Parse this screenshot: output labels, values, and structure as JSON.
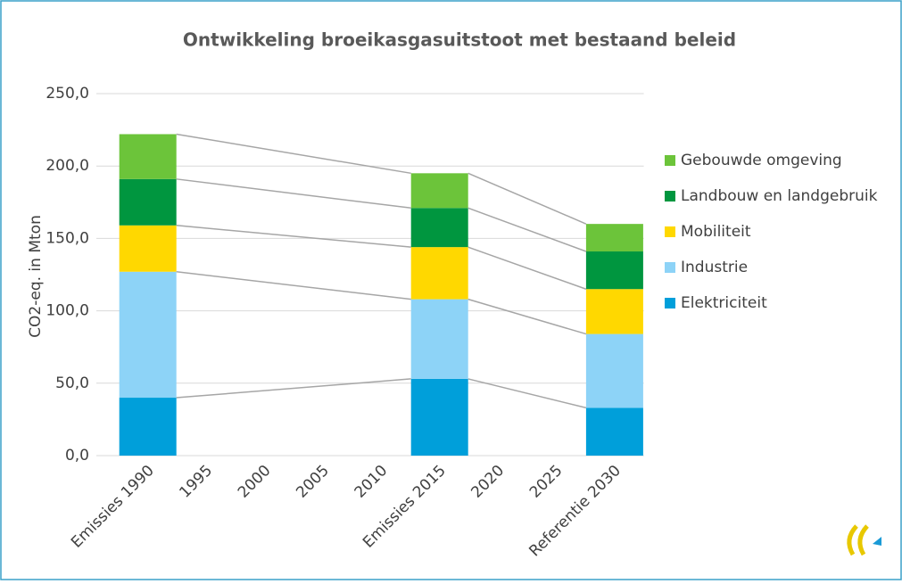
{
  "chart_data": {
    "type": "stacked_bar",
    "title": "Ontwikkeling broeikasgasuitstoot met bestaand beleid",
    "y_label": "CO2-eq. in Mton",
    "categories": [
      "Emissies 1990",
      "1995",
      "2000",
      "2005",
      "2010",
      "Emissies 2015",
      "2020",
      "2025",
      "Referentie 2030"
    ],
    "series": [
      {
        "name": "Elektriciteit",
        "color": "#009fda",
        "values": [
          40,
          null,
          null,
          null,
          null,
          53,
          null,
          null,
          33
        ]
      },
      {
        "name": "Industrie",
        "color": "#8dd3f7",
        "values": [
          87,
          null,
          null,
          null,
          null,
          55,
          null,
          null,
          51
        ]
      },
      {
        "name": "Mobiliteit",
        "color": "#ffd800",
        "values": [
          32,
          null,
          null,
          null,
          null,
          36,
          null,
          null,
          31
        ]
      },
      {
        "name": "Landbouw en landgebruik",
        "color": "#00963f",
        "values": [
          32,
          null,
          null,
          null,
          null,
          27,
          null,
          null,
          26
        ]
      },
      {
        "name": "Gebouwde omgeving",
        "color": "#6cc43a",
        "values": [
          31,
          null,
          null,
          null,
          null,
          24,
          null,
          null,
          19
        ]
      }
    ],
    "ylim": [
      0,
      250
    ],
    "yticks": [
      {
        "value": 0,
        "label": "0,0"
      },
      {
        "value": 50,
        "label": "50,0"
      },
      {
        "value": 100,
        "label": "100,0"
      },
      {
        "value": 150,
        "label": "150,0"
      },
      {
        "value": 200,
        "label": "200,0"
      },
      {
        "value": 250,
        "label": "250,0"
      }
    ],
    "grid": true,
    "legend": "right"
  }
}
